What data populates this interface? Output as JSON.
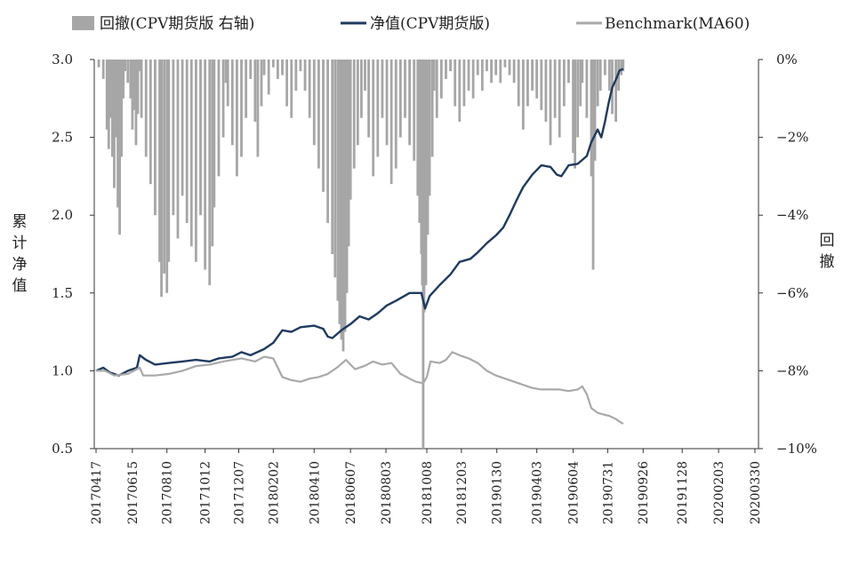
{
  "colors": {
    "drawdown": "#a6a6a6",
    "nav": "#1f3a60",
    "benchmark": "#a9a9a9",
    "axis": "#333333"
  },
  "chart_data": {
    "type": "line",
    "legend": [
      "回撤(CPV期货版 右轴)",
      "净值(CPV期货版)",
      "Benchmark(MA60)"
    ],
    "ylabel_left": [
      "累",
      "计",
      "净",
      "值"
    ],
    "ylabel_right": [
      "回",
      "撤"
    ],
    "left_axis": {
      "ylim": [
        0.5,
        3.0
      ],
      "ticks": [
        0.5,
        1.0,
        1.5,
        2.0,
        2.5,
        3.0
      ],
      "tick_labels": [
        "0.5",
        "1.0",
        "1.5",
        "2.0",
        "2.5",
        "3.0"
      ]
    },
    "right_axis": {
      "ylim": [
        -10,
        0
      ],
      "ticks": [
        0,
        -2,
        -4,
        -6,
        -8,
        -10
      ],
      "tick_labels": [
        "0%",
        "−2%",
        "−4%",
        "−6%",
        "−8%",
        "−10%"
      ]
    },
    "x_ticks": [
      "20170417",
      "20170615",
      "20170810",
      "20171012",
      "20171207",
      "20180202",
      "20180410",
      "20180607",
      "20180803",
      "20181008",
      "20181203",
      "20190130",
      "20190403",
      "20190604",
      "20190731",
      "20190926",
      "20191128",
      "20200203",
      "20200330"
    ],
    "x_tick_index": [
      0,
      40,
      78,
      120,
      157,
      195,
      240,
      280,
      319,
      364,
      402,
      441,
      485,
      525,
      563,
      602,
      645,
      685,
      725
    ],
    "n_days": 728,
    "series": [
      {
        "name": "净值(CPV期货版)",
        "axis": "left",
        "points": [
          [
            0,
            1.0
          ],
          [
            8,
            1.02
          ],
          [
            15,
            0.99
          ],
          [
            25,
            0.97
          ],
          [
            35,
            1.0
          ],
          [
            45,
            1.02
          ],
          [
            48,
            1.1
          ],
          [
            55,
            1.07
          ],
          [
            65,
            1.04
          ],
          [
            80,
            1.05
          ],
          [
            95,
            1.06
          ],
          [
            110,
            1.07
          ],
          [
            125,
            1.06
          ],
          [
            135,
            1.08
          ],
          [
            150,
            1.09
          ],
          [
            160,
            1.12
          ],
          [
            170,
            1.1
          ],
          [
            185,
            1.14
          ],
          [
            195,
            1.18
          ],
          [
            205,
            1.26
          ],
          [
            215,
            1.25
          ],
          [
            225,
            1.28
          ],
          [
            240,
            1.29
          ],
          [
            250,
            1.27
          ],
          [
            255,
            1.22
          ],
          [
            260,
            1.21
          ],
          [
            270,
            1.26
          ],
          [
            280,
            1.3
          ],
          [
            290,
            1.35
          ],
          [
            300,
            1.33
          ],
          [
            310,
            1.37
          ],
          [
            320,
            1.42
          ],
          [
            330,
            1.45
          ],
          [
            345,
            1.5
          ],
          [
            358,
            1.5
          ],
          [
            362,
            1.4
          ],
          [
            367,
            1.48
          ],
          [
            378,
            1.55
          ],
          [
            390,
            1.62
          ],
          [
            400,
            1.7
          ],
          [
            412,
            1.72
          ],
          [
            420,
            1.76
          ],
          [
            430,
            1.82
          ],
          [
            440,
            1.87
          ],
          [
            448,
            1.92
          ],
          [
            455,
            2.0
          ],
          [
            463,
            2.1
          ],
          [
            470,
            2.18
          ],
          [
            480,
            2.26
          ],
          [
            490,
            2.32
          ],
          [
            500,
            2.31
          ],
          [
            507,
            2.26
          ],
          [
            512,
            2.25
          ],
          [
            520,
            2.32
          ],
          [
            530,
            2.33
          ],
          [
            540,
            2.38
          ],
          [
            545,
            2.47
          ],
          [
            552,
            2.55
          ],
          [
            556,
            2.5
          ],
          [
            560,
            2.6
          ],
          [
            564,
            2.72
          ],
          [
            568,
            2.82
          ],
          [
            572,
            2.87
          ],
          [
            576,
            2.93
          ],
          [
            580,
            2.94
          ]
        ]
      },
      {
        "name": "Benchmark(MA60)",
        "axis": "left",
        "points": [
          [
            0,
            1.0
          ],
          [
            10,
            1.0
          ],
          [
            20,
            0.97
          ],
          [
            35,
            0.98
          ],
          [
            48,
            1.02
          ],
          [
            52,
            0.97
          ],
          [
            65,
            0.97
          ],
          [
            80,
            0.98
          ],
          [
            95,
            1.0
          ],
          [
            110,
            1.03
          ],
          [
            125,
            1.04
          ],
          [
            140,
            1.06
          ],
          [
            160,
            1.08
          ],
          [
            175,
            1.06
          ],
          [
            185,
            1.09
          ],
          [
            195,
            1.08
          ],
          [
            205,
            0.96
          ],
          [
            215,
            0.94
          ],
          [
            225,
            0.93
          ],
          [
            235,
            0.95
          ],
          [
            245,
            0.96
          ],
          [
            255,
            0.98
          ],
          [
            265,
            1.02
          ],
          [
            275,
            1.07
          ],
          [
            285,
            1.01
          ],
          [
            295,
            1.03
          ],
          [
            305,
            1.06
          ],
          [
            315,
            1.04
          ],
          [
            325,
            1.05
          ],
          [
            335,
            0.98
          ],
          [
            345,
            0.95
          ],
          [
            352,
            0.93
          ],
          [
            360,
            0.92
          ],
          [
            364,
            0.96
          ],
          [
            368,
            1.06
          ],
          [
            378,
            1.05
          ],
          [
            385,
            1.07
          ],
          [
            392,
            1.12
          ],
          [
            400,
            1.1
          ],
          [
            410,
            1.08
          ],
          [
            420,
            1.05
          ],
          [
            430,
            1.0
          ],
          [
            440,
            0.97
          ],
          [
            450,
            0.95
          ],
          [
            460,
            0.93
          ],
          [
            470,
            0.91
          ],
          [
            480,
            0.89
          ],
          [
            490,
            0.88
          ],
          [
            500,
            0.88
          ],
          [
            510,
            0.88
          ],
          [
            520,
            0.87
          ],
          [
            530,
            0.88
          ],
          [
            535,
            0.9
          ],
          [
            540,
            0.85
          ],
          [
            545,
            0.76
          ],
          [
            552,
            0.73
          ],
          [
            558,
            0.72
          ],
          [
            565,
            0.71
          ],
          [
            572,
            0.69
          ],
          [
            577,
            0.67
          ],
          [
            580,
            0.66
          ]
        ]
      }
    ],
    "drawdown": {
      "axis": "right",
      "unit": "%",
      "bars": [
        [
          3,
          -0.2
        ],
        [
          8,
          -0.5
        ],
        [
          12,
          -1.8
        ],
        [
          14,
          -2.3
        ],
        [
          16,
          -1.5
        ],
        [
          18,
          -2.5
        ],
        [
          20,
          -3.3
        ],
        [
          22,
          -2.0
        ],
        [
          24,
          -3.8
        ],
        [
          26,
          -4.5
        ],
        [
          28,
          -2.5
        ],
        [
          30,
          -1.0
        ],
        [
          32,
          -0.3
        ],
        [
          35,
          -0.6
        ],
        [
          38,
          -1.0
        ],
        [
          40,
          -1.8
        ],
        [
          42,
          -1.3
        ],
        [
          44,
          -2.2
        ],
        [
          46,
          -1.4
        ],
        [
          48,
          -0.3
        ],
        [
          50,
          -1.5
        ],
        [
          55,
          -2.5
        ],
        [
          60,
          -3.2
        ],
        [
          65,
          -4.0
        ],
        [
          70,
          -5.2
        ],
        [
          72,
          -6.1
        ],
        [
          75,
          -5.5
        ],
        [
          78,
          -6.0
        ],
        [
          80,
          -5.2
        ],
        [
          85,
          -4.0
        ],
        [
          90,
          -4.6
        ],
        [
          95,
          -3.5
        ],
        [
          100,
          -4.2
        ],
        [
          105,
          -4.8
        ],
        [
          110,
          -5.2
        ],
        [
          115,
          -4.0
        ],
        [
          120,
          -5.4
        ],
        [
          125,
          -5.8
        ],
        [
          128,
          -4.8
        ],
        [
          130,
          -3.8
        ],
        [
          135,
          -3.0
        ],
        [
          140,
          -2.0
        ],
        [
          143,
          -0.6
        ],
        [
          145,
          -1.2
        ],
        [
          150,
          -2.2
        ],
        [
          155,
          -3.0
        ],
        [
          160,
          -2.5
        ],
        [
          165,
          -1.5
        ],
        [
          170,
          -0.5
        ],
        [
          175,
          -1.6
        ],
        [
          178,
          -2.5
        ],
        [
          182,
          -1.2
        ],
        [
          185,
          -0.4
        ],
        [
          190,
          -0.9
        ],
        [
          195,
          -0.2
        ],
        [
          200,
          -0.5
        ],
        [
          205,
          -0.4
        ],
        [
          210,
          -1.2
        ],
        [
          215,
          -1.5
        ],
        [
          220,
          -0.8
        ],
        [
          225,
          -0.3
        ],
        [
          230,
          -0.8
        ],
        [
          235,
          -1.5
        ],
        [
          240,
          -2.2
        ],
        [
          245,
          -2.8
        ],
        [
          250,
          -3.4
        ],
        [
          255,
          -4.2
        ],
        [
          260,
          -5.0
        ],
        [
          263,
          -5.6
        ],
        [
          266,
          -6.2
        ],
        [
          268,
          -6.8
        ],
        [
          270,
          -7.2
        ],
        [
          272,
          -7.5
        ],
        [
          274,
          -7.0
        ],
        [
          276,
          -6.0
        ],
        [
          278,
          -4.8
        ],
        [
          280,
          -3.6
        ],
        [
          284,
          -2.8
        ],
        [
          288,
          -2.2
        ],
        [
          292,
          -1.5
        ],
        [
          296,
          -0.8
        ],
        [
          300,
          -2.0
        ],
        [
          305,
          -3.0
        ],
        [
          310,
          -2.5
        ],
        [
          315,
          -1.5
        ],
        [
          320,
          -2.2
        ],
        [
          325,
          -3.2
        ],
        [
          330,
          -2.8
        ],
        [
          335,
          -2.0
        ],
        [
          340,
          -1.5
        ],
        [
          345,
          -2.2
        ],
        [
          350,
          -2.6
        ],
        [
          354,
          -3.5
        ],
        [
          356,
          -4.2
        ],
        [
          358,
          -5.0
        ],
        [
          359,
          -5.8
        ],
        [
          360,
          -10.0
        ],
        [
          361,
          -6.5
        ],
        [
          363,
          -5.8
        ],
        [
          365,
          -4.5
        ],
        [
          367,
          -3.5
        ],
        [
          370,
          -2.5
        ],
        [
          372,
          -0.8
        ],
        [
          375,
          -1.5
        ],
        [
          380,
          -1.0
        ],
        [
          385,
          -0.5
        ],
        [
          390,
          -0.3
        ],
        [
          395,
          -1.2
        ],
        [
          400,
          -1.6
        ],
        [
          405,
          -1.2
        ],
        [
          410,
          -0.8
        ],
        [
          415,
          -1.0
        ],
        [
          420,
          -0.4
        ],
        [
          425,
          -0.8
        ],
        [
          430,
          -0.3
        ],
        [
          435,
          -0.6
        ],
        [
          440,
          -0.4
        ],
        [
          445,
          -0.6
        ],
        [
          450,
          -0.2
        ],
        [
          455,
          -0.4
        ],
        [
          460,
          -0.6
        ],
        [
          465,
          -1.2
        ],
        [
          470,
          -1.8
        ],
        [
          475,
          -1.2
        ],
        [
          480,
          -0.8
        ],
        [
          485,
          -1.0
        ],
        [
          490,
          -1.3
        ],
        [
          495,
          -1.6
        ],
        [
          500,
          -2.2
        ],
        [
          505,
          -1.5
        ],
        [
          510,
          -2.0
        ],
        [
          515,
          -1.2
        ],
        [
          520,
          -0.6
        ],
        [
          525,
          -2.4
        ],
        [
          527,
          -2.8
        ],
        [
          530,
          -2.0
        ],
        [
          533,
          -1.2
        ],
        [
          535,
          -0.6
        ],
        [
          540,
          -1.5
        ],
        [
          545,
          -3.0
        ],
        [
          547,
          -5.4
        ],
        [
          549,
          -2.6
        ],
        [
          552,
          -1.2
        ],
        [
          555,
          -0.8
        ],
        [
          560,
          -0.4
        ],
        [
          565,
          -0.8
        ],
        [
          568,
          -1.4
        ],
        [
          572,
          -1.6
        ],
        [
          575,
          -0.8
        ],
        [
          578,
          -0.4
        ],
        [
          580,
          -0.3
        ]
      ]
    }
  }
}
